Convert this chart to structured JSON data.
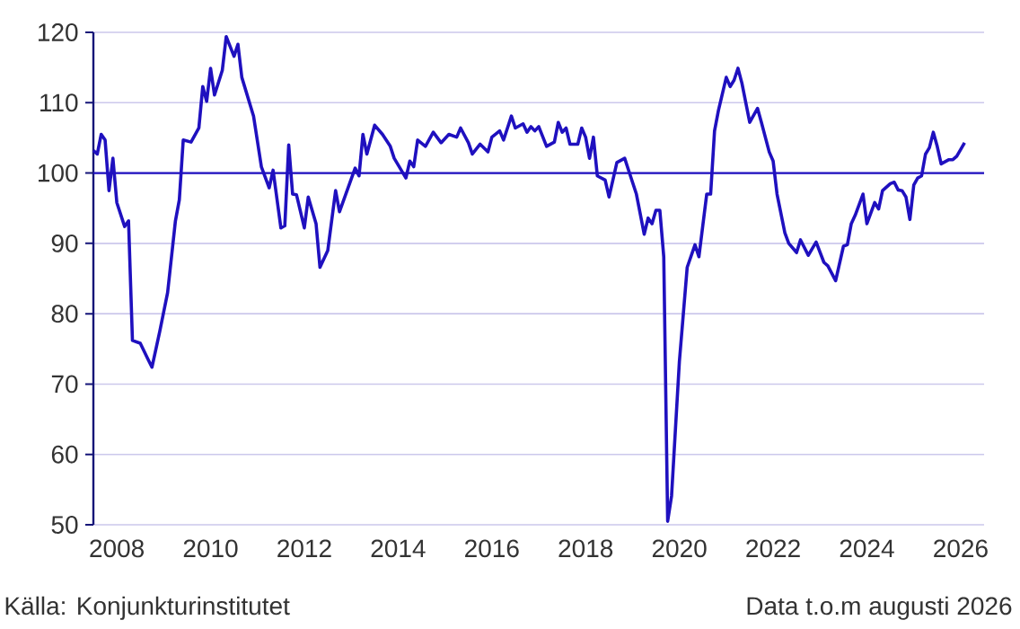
{
  "chart_data": {
    "type": "line",
    "color": "#1f10bf",
    "grid": "y",
    "xlim": [
      "2008-01",
      "2027-01"
    ],
    "ylim": [
      50,
      120
    ],
    "yticks": [
      50,
      60,
      70,
      80,
      90,
      100,
      110,
      120
    ],
    "xticks": [
      {
        "value": "2008-07",
        "label": "2008"
      },
      {
        "value": "2010-07",
        "label": "2010"
      },
      {
        "value": "2012-07",
        "label": "2012"
      },
      {
        "value": "2014-07",
        "label": "2014"
      },
      {
        "value": "2016-07",
        "label": "2016"
      },
      {
        "value": "2018-07",
        "label": "2018"
      },
      {
        "value": "2020-07",
        "label": "2020"
      },
      {
        "value": "2022-07",
        "label": "2022"
      },
      {
        "value": "2024-07",
        "label": "2024"
      },
      {
        "value": "2026-07",
        "label": "2026"
      }
    ],
    "ref_lines": [
      {
        "axis": "y",
        "value": 100,
        "color": "#1f10bf"
      }
    ],
    "annotations": [
      "Källa: Konjunkturinstitutet",
      "Data t.o.m augusti 2026"
    ],
    "x": [
      "2008-01",
      "2008-02",
      "2008-03",
      "2008-04",
      "2008-05",
      "2008-06",
      "2008-07",
      "2008-09",
      "2008-10",
      "2008-11",
      "2009-01",
      "2009-03",
      "2009-04",
      "2009-06",
      "2009-08",
      "2009-10",
      "2009-11",
      "2009-12",
      "2010-02",
      "2010-04",
      "2010-05",
      "2010-06",
      "2010-07",
      "2010-08",
      "2010-10",
      "2010-11",
      "2011-01",
      "2011-02",
      "2011-03",
      "2011-06",
      "2011-08",
      "2011-10",
      "2011-11",
      "2012-01",
      "2012-02",
      "2012-03",
      "2012-04",
      "2012-05",
      "2012-07",
      "2012-08",
      "2012-10",
      "2012-11",
      "2013-01",
      "2013-03",
      "2013-04",
      "2013-08",
      "2013-09",
      "2013-10",
      "2013-11",
      "2014-01",
      "2014-03",
      "2014-05",
      "2014-06",
      "2014-09",
      "2014-10",
      "2014-11",
      "2014-12",
      "2015-02",
      "2015-04",
      "2015-06",
      "2015-08",
      "2015-10",
      "2015-11",
      "2016-01",
      "2016-02",
      "2016-04",
      "2016-06",
      "2016-07",
      "2016-09",
      "2016-10",
      "2016-12",
      "2017-01",
      "2017-03",
      "2017-04",
      "2017-05",
      "2017-06",
      "2017-07",
      "2017-09",
      "2017-11",
      "2017-12",
      "2018-01",
      "2018-02",
      "2018-03",
      "2018-05",
      "2018-06",
      "2018-07",
      "2018-08",
      "2018-09",
      "2018-10",
      "2018-12",
      "2019-01",
      "2019-03",
      "2019-05",
      "2019-06",
      "2019-08",
      "2019-10",
      "2019-11",
      "2019-12",
      "2020-01",
      "2020-02",
      "2020-03",
      "2020-04",
      "2020-05",
      "2020-07",
      "2020-09",
      "2020-11",
      "2020-12",
      "2021-02",
      "2021-03",
      "2021-04",
      "2021-05",
      "2021-07",
      "2021-08",
      "2021-09",
      "2021-10",
      "2021-11",
      "2022-01",
      "2022-03",
      "2022-04",
      "2022-06",
      "2022-07",
      "2022-08",
      "2022-10",
      "2022-11",
      "2023-01",
      "2023-02",
      "2023-04",
      "2023-06",
      "2023-08",
      "2023-09",
      "2023-11",
      "2024-01",
      "2024-02",
      "2024-03",
      "2024-04",
      "2024-06",
      "2024-07",
      "2024-09",
      "2024-10",
      "2024-11",
      "2025-01",
      "2025-02",
      "2025-03",
      "2025-04",
      "2025-05",
      "2025-06",
      "2025-07",
      "2025-08",
      "2025-09",
      "2025-10",
      "2025-11",
      "2025-12",
      "2026-01",
      "2026-02",
      "2026-04",
      "2026-05",
      "2026-06",
      "2026-08"
    ],
    "values": [
      103.2,
      102.7,
      105.5,
      104.7,
      97.5,
      102.1,
      95.8,
      92.4,
      93.2,
      76.2,
      75.8,
      73.5,
      72.4,
      77.5,
      83.0,
      93.2,
      96.2,
      104.7,
      104.4,
      106.4,
      112.3,
      110.2,
      114.9,
      111.1,
      114.6,
      119.4,
      116.6,
      118.3,
      113.6,
      108.1,
      100.9,
      97.9,
      100.4,
      92.2,
      92.5,
      104.0,
      97.0,
      96.9,
      92.2,
      96.6,
      92.8,
      86.6,
      89.0,
      97.5,
      94.5,
      100.7,
      99.6,
      105.5,
      102.7,
      106.8,
      105.5,
      103.8,
      102.1,
      99.3,
      101.7,
      100.9,
      104.7,
      103.8,
      105.8,
      104.3,
      105.5,
      105.1,
      106.4,
      104.3,
      102.7,
      104.1,
      103.0,
      105.1,
      106.0,
      104.7,
      108.1,
      106.4,
      107.0,
      105.8,
      106.6,
      106.0,
      106.6,
      103.8,
      104.4,
      107.2,
      105.8,
      106.4,
      104.1,
      104.1,
      106.4,
      105.1,
      102.1,
      105.1,
      99.6,
      99.0,
      96.6,
      101.5,
      102.1,
      100.4,
      97.0,
      91.3,
      93.6,
      92.8,
      94.7,
      94.7,
      88.1,
      50.5,
      54.1,
      73.2,
      86.6,
      89.8,
      88.1,
      97.0,
      97.0,
      106.0,
      108.9,
      113.6,
      112.3,
      113.2,
      114.9,
      112.8,
      107.2,
      109.2,
      107.2,
      103.0,
      101.7,
      97.0,
      91.5,
      90.0,
      88.7,
      90.5,
      88.3,
      90.2,
      87.3,
      86.8,
      84.7,
      89.6,
      89.8,
      92.8,
      94.0,
      97.0,
      92.8,
      95.8,
      94.9,
      97.5,
      98.5,
      98.7,
      97.6,
      97.5,
      96.6,
      93.4,
      98.3,
      99.3,
      99.6,
      102.7,
      103.6,
      105.8,
      103.8,
      101.3,
      101.9,
      101.9,
      102.4,
      104.3
    ]
  }
}
